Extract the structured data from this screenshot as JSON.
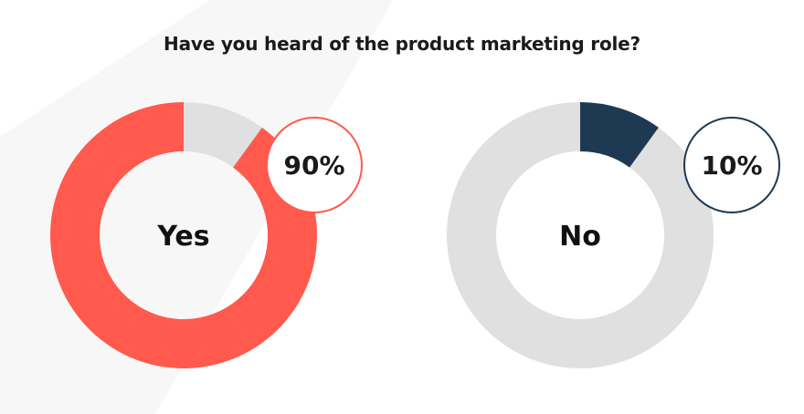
{
  "chart_data": {
    "type": "pie",
    "title": "Have you heard of the product marketing role?",
    "charts": [
      {
        "label": "Yes",
        "value": 90,
        "display": "90%",
        "color": "#ff5a4d",
        "remainder_color": "#e0e0e0",
        "badge_border_color": "#ff5a4d"
      },
      {
        "label": "No",
        "value": 10,
        "display": "10%",
        "color": "#1d3a52",
        "remainder_color": "#e0e0e0",
        "badge_border_color": "#1d3a52"
      }
    ]
  },
  "colors": {
    "background": "#ffffff",
    "background_shape": "#f6f6f6"
  }
}
